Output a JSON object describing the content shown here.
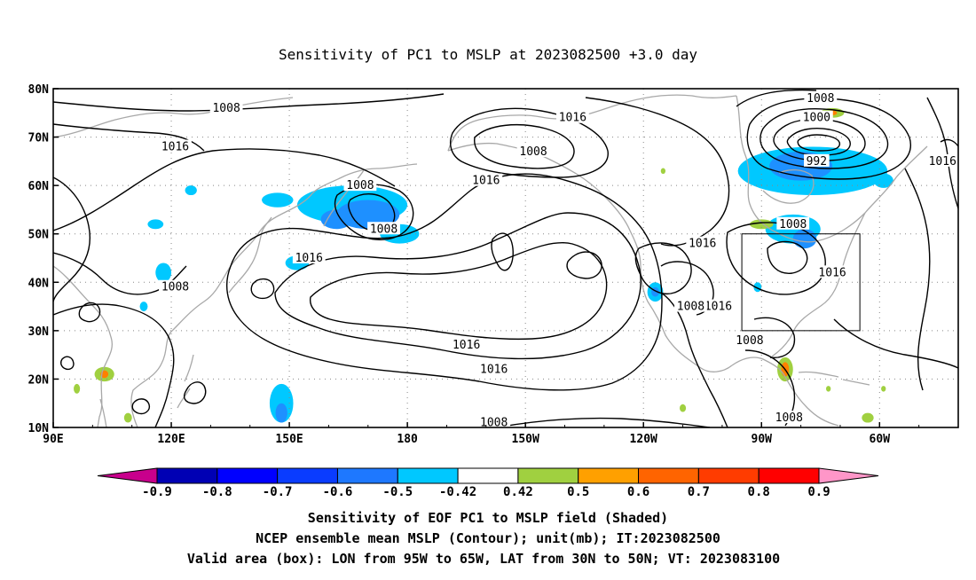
{
  "title": "Sensitivity of PC1 to MSLP at 2023082500 +3.0 day",
  "chart_data": {
    "type": "map",
    "x_ticks": [
      "90E",
      "120E",
      "150E",
      "180",
      "150W",
      "120W",
      "90W",
      "60W"
    ],
    "x_tick_lons": [
      90,
      120,
      150,
      180,
      210,
      240,
      270,
      300
    ],
    "y_ticks": [
      "10N",
      "20N",
      "30N",
      "40N",
      "50N",
      "60N",
      "70N",
      "80N"
    ],
    "y_tick_lats": [
      10,
      20,
      30,
      40,
      50,
      60,
      70,
      80
    ],
    "lon_range": [
      90,
      320
    ],
    "lat_range": [
      10,
      80
    ],
    "grid": true,
    "contour_labels": [
      {
        "text": "1008",
        "lon": 134,
        "lat": 76
      },
      {
        "text": "1016",
        "lon": 121,
        "lat": 68
      },
      {
        "text": "1008",
        "lon": 168,
        "lat": 60
      },
      {
        "text": "1008",
        "lon": 174,
        "lat": 51
      },
      {
        "text": "1016",
        "lon": 155,
        "lat": 45
      },
      {
        "text": "1008",
        "lon": 121,
        "lat": 39
      },
      {
        "text": "1016",
        "lon": 195,
        "lat": 27
      },
      {
        "text": "1016",
        "lon": 202,
        "lat": 22
      },
      {
        "text": "1008",
        "lon": 202,
        "lat": 11
      },
      {
        "text": "1016",
        "lon": 222,
        "lat": 74
      },
      {
        "text": "1008",
        "lon": 212,
        "lat": 67
      },
      {
        "text": "1016",
        "lon": 200,
        "lat": 61
      },
      {
        "text": "1016",
        "lon": 255,
        "lat": 48
      },
      {
        "text": "1016",
        "lon": 259,
        "lat": 35
      },
      {
        "text": "1008",
        "lon": 252,
        "lat": 35
      },
      {
        "text": "1008",
        "lon": 285,
        "lat": 78
      },
      {
        "text": "1000",
        "lon": 284,
        "lat": 74
      },
      {
        "text": "992",
        "lon": 284,
        "lat": 65
      },
      {
        "text": "1008",
        "lon": 278,
        "lat": 52
      },
      {
        "text": "1016",
        "lon": 288,
        "lat": 42
      },
      {
        "text": "1016",
        "lon": 316,
        "lat": 65
      },
      {
        "text": "1008",
        "lon": 267,
        "lat": 28
      },
      {
        "text": "1008",
        "lon": 277,
        "lat": 12
      }
    ],
    "shaded_regions": [
      {
        "color": "#00c8ff",
        "lon": 166,
        "lat": 56,
        "rx": 14,
        "ry": 4
      },
      {
        "color": "#1e90ff",
        "lon": 170,
        "lat": 54,
        "rx": 8,
        "ry": 3
      },
      {
        "color": "#00c8ff",
        "lon": 178,
        "lat": 50,
        "rx": 5,
        "ry": 2
      },
      {
        "color": "#1e90ff",
        "lon": 162,
        "lat": 53,
        "rx": 4,
        "ry": 2
      },
      {
        "color": "#00c8ff",
        "lon": 147,
        "lat": 57,
        "rx": 4,
        "ry": 1.5
      },
      {
        "color": "#00c8ff",
        "lon": 152,
        "lat": 44,
        "rx": 3,
        "ry": 1.5
      },
      {
        "color": "#00c8ff",
        "lon": 148,
        "lat": 15,
        "rx": 3,
        "ry": 4
      },
      {
        "color": "#1e90ff",
        "lon": 148,
        "lat": 13,
        "rx": 1.5,
        "ry": 2
      },
      {
        "color": "#00c8ff",
        "lon": 116,
        "lat": 52,
        "rx": 2,
        "ry": 1
      },
      {
        "color": "#00c8ff",
        "lon": 118,
        "lat": 42,
        "rx": 2,
        "ry": 2
      },
      {
        "color": "#00c8ff",
        "lon": 113,
        "lat": 35,
        "rx": 1,
        "ry": 1
      },
      {
        "color": "#00c8ff",
        "lon": 125,
        "lat": 59,
        "rx": 1.5,
        "ry": 1
      },
      {
        "color": "#00c8ff",
        "lon": 283,
        "lat": 63,
        "rx": 19,
        "ry": 5
      },
      {
        "color": "#1e90ff",
        "lon": 280,
        "lat": 64,
        "rx": 8,
        "ry": 3
      },
      {
        "color": "#00c8ff",
        "lon": 278,
        "lat": 51,
        "rx": 7,
        "ry": 3
      },
      {
        "color": "#1e90ff",
        "lon": 281,
        "lat": 49,
        "rx": 3,
        "ry": 2
      },
      {
        "color": "#00c8ff",
        "lon": 301,
        "lat": 61,
        "rx": 2.5,
        "ry": 1.5
      },
      {
        "color": "#00c8ff",
        "lon": 243,
        "lat": 38,
        "rx": 2,
        "ry": 2
      },
      {
        "color": "#1e90ff",
        "lon": 243,
        "lat": 38,
        "rx": 1,
        "ry": 1
      },
      {
        "color": "#00c8ff",
        "lon": 269,
        "lat": 39,
        "rx": 1,
        "ry": 1
      },
      {
        "color": "#a0d040",
        "lon": 270,
        "lat": 52,
        "rx": 3,
        "ry": 1
      },
      {
        "color": "#a0d040",
        "lon": 288,
        "lat": 75,
        "rx": 3,
        "ry": 1
      },
      {
        "color": "#ff8000",
        "lon": 288,
        "lat": 75,
        "rx": 1.2,
        "ry": 0.5
      },
      {
        "color": "#a0d040",
        "lon": 276,
        "lat": 22,
        "rx": 2,
        "ry": 2.5
      },
      {
        "color": "#ff8000",
        "lon": 276,
        "lat": 22,
        "rx": 1,
        "ry": 1.5
      },
      {
        "color": "#a0d040",
        "lon": 103,
        "lat": 21,
        "rx": 2.5,
        "ry": 1.5
      },
      {
        "color": "#ff8000",
        "lon": 103,
        "lat": 21,
        "rx": 1,
        "ry": 0.8
      },
      {
        "color": "#a0d040",
        "lon": 96,
        "lat": 18,
        "rx": 0.8,
        "ry": 1
      },
      {
        "color": "#a0d040",
        "lon": 109,
        "lat": 12,
        "rx": 1,
        "ry": 1
      },
      {
        "color": "#a0d040",
        "lon": 250,
        "lat": 14,
        "rx": 0.8,
        "ry": 0.8
      },
      {
        "color": "#a0d040",
        "lon": 297,
        "lat": 12,
        "rx": 1.5,
        "ry": 1
      },
      {
        "color": "#a0d040",
        "lon": 287,
        "lat": 18,
        "rx": 0.6,
        "ry": 0.6
      },
      {
        "color": "#a0d040",
        "lon": 301,
        "lat": 18,
        "rx": 0.6,
        "ry": 0.6
      },
      {
        "color": "#a0d040",
        "lon": 245,
        "lat": 63,
        "rx": 0.6,
        "ry": 0.6
      }
    ],
    "valid_box": {
      "lon": [
        265,
        295
      ],
      "lat": [
        30,
        50
      ]
    },
    "colorbar": {
      "labels": [
        "-0.9",
        "-0.8",
        "-0.7",
        "-0.6",
        "-0.5",
        "-0.42",
        "0.42",
        "0.5",
        "0.6",
        "0.7",
        "0.8",
        "0.9"
      ],
      "colors": [
        "#c8008c",
        "#0000b4",
        "#0000ff",
        "#0a3cff",
        "#1e78ff",
        "#00c8ff",
        "#ffffff",
        "#a0d040",
        "#ffa000",
        "#ff6400",
        "#ff3c00",
        "#ff0000",
        "#ff96c8"
      ]
    }
  },
  "captions": {
    "line1": "Sensitivity of EOF PC1 to MSLP field (Shaded)",
    "line2": "NCEP ensemble mean MSLP (Contour); unit(mb); IT:2023082500",
    "line3": "Valid area (box): LON from 95W to 65W, LAT from 30N to 50N; VT: 2023083100"
  }
}
